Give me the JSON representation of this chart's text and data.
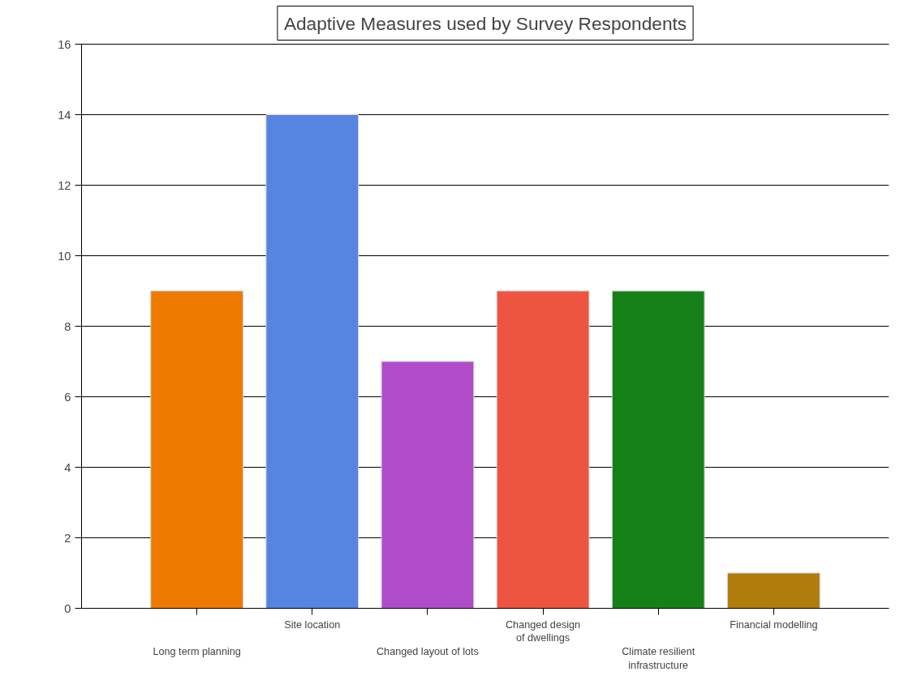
{
  "chart_data": {
    "type": "bar",
    "title": "Adaptive Measures used by Survey Respondents",
    "categories": [
      "Long term planning",
      "Site location",
      "Changed layout of lots",
      "Changed design of dwellings",
      "Climate resilient infrastructure",
      "Financial modelling"
    ],
    "values": [
      9,
      14,
      7,
      9,
      9,
      1
    ],
    "colors": [
      "#ee7a00",
      "#5585e0",
      "#b04cc8",
      "#ee5540",
      "#168018",
      "#b07c0c"
    ],
    "ylim": [
      0,
      16
    ],
    "yticks": [
      0,
      2,
      4,
      6,
      8,
      10,
      12,
      14,
      16
    ],
    "grid": "y"
  }
}
